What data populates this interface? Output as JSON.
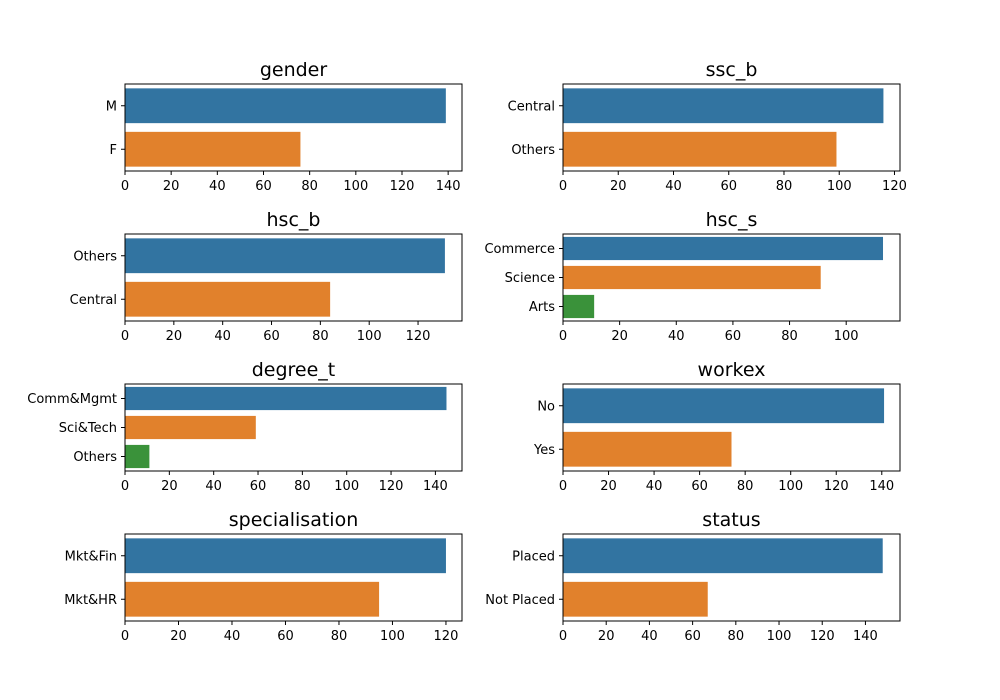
{
  "colors": [
    "#3274a1",
    "#e1812c",
    "#3a923a"
  ],
  "chart_data": [
    {
      "type": "bar",
      "orientation": "horizontal",
      "title": "gender",
      "categories": [
        "M",
        "F"
      ],
      "values": [
        139,
        76
      ],
      "xlim": [
        0,
        146
      ],
      "xticks": [
        0,
        20,
        40,
        60,
        80,
        100,
        120,
        140
      ],
      "grid": false
    },
    {
      "type": "bar",
      "orientation": "horizontal",
      "title": "ssc_b",
      "categories": [
        "Central",
        "Others"
      ],
      "values": [
        116,
        99
      ],
      "xlim": [
        0,
        122
      ],
      "xticks": [
        0,
        20,
        40,
        60,
        80,
        100,
        120
      ],
      "grid": false
    },
    {
      "type": "bar",
      "orientation": "horizontal",
      "title": "hsc_b",
      "categories": [
        "Others",
        "Central"
      ],
      "values": [
        131,
        84
      ],
      "xlim": [
        0,
        138
      ],
      "xticks": [
        0,
        20,
        40,
        60,
        80,
        100,
        120
      ],
      "grid": false
    },
    {
      "type": "bar",
      "orientation": "horizontal",
      "title": "hsc_s",
      "categories": [
        "Commerce",
        "Science",
        "Arts"
      ],
      "values": [
        113,
        91,
        11
      ],
      "xlim": [
        0,
        119
      ],
      "xticks": [
        0,
        20,
        40,
        60,
        80,
        100
      ],
      "grid": false
    },
    {
      "type": "bar",
      "orientation": "horizontal",
      "title": "degree_t",
      "categories": [
        "Comm&Mgmt",
        "Sci&Tech",
        "Others"
      ],
      "values": [
        145,
        59,
        11
      ],
      "xlim": [
        0,
        152
      ],
      "xticks": [
        0,
        20,
        40,
        60,
        80,
        100,
        120,
        140
      ],
      "grid": false
    },
    {
      "type": "bar",
      "orientation": "horizontal",
      "title": "workex",
      "categories": [
        "No",
        "Yes"
      ],
      "values": [
        141,
        74
      ],
      "xlim": [
        0,
        148
      ],
      "xticks": [
        0,
        20,
        40,
        60,
        80,
        100,
        120,
        140
      ],
      "grid": false
    },
    {
      "type": "bar",
      "orientation": "horizontal",
      "title": "specialisation",
      "categories": [
        "Mkt&Fin",
        "Mkt&HR"
      ],
      "values": [
        120,
        95
      ],
      "xlim": [
        0,
        126
      ],
      "xticks": [
        0,
        20,
        40,
        60,
        80,
        100,
        120
      ],
      "grid": false
    },
    {
      "type": "bar",
      "orientation": "horizontal",
      "title": "status",
      "categories": [
        "Placed",
        "Not Placed"
      ],
      "values": [
        148,
        67
      ],
      "xlim": [
        0,
        156
      ],
      "xticks": [
        0,
        20,
        40,
        60,
        80,
        100,
        120,
        140
      ],
      "grid": false
    }
  ]
}
